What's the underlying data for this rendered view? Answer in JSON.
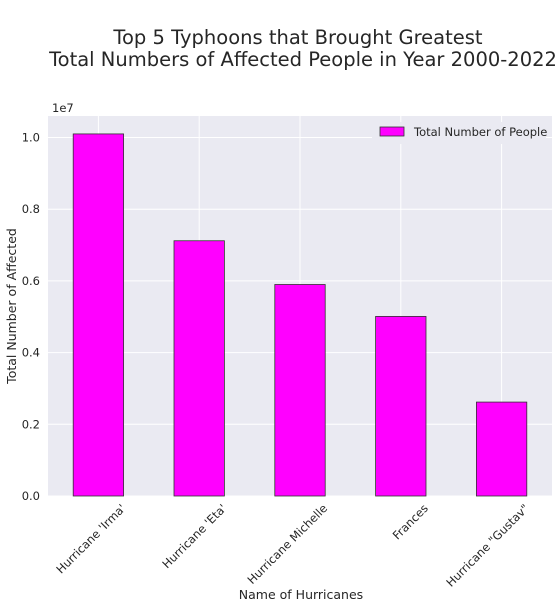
{
  "chart_data": {
    "type": "bar",
    "title_lines": [
      "Top 5 Typhoons that Brought Greatest",
      "Total Numbers of Affected People in Year 2000-2022"
    ],
    "xlabel": "Name of Hurricanes",
    "ylabel": "Total Number of Affected",
    "y_offset_label": "1e7",
    "categories": [
      "Hurricane 'Irma'",
      "Hurricane 'Eta'",
      "Hurricane Michelle",
      "Frances",
      "Hurricane \"Gustav\""
    ],
    "series": [
      {
        "name": "Total Number of People",
        "values": [
          10100000,
          7120000,
          5900000,
          5010000,
          2620000
        ]
      }
    ],
    "yticks": [
      0.0,
      0.2,
      0.4,
      0.6,
      0.8,
      1.0
    ],
    "ytick_labels": [
      "0.0",
      "0.2",
      "0.4",
      "0.6",
      "0.8",
      "1.0"
    ],
    "ylim": [
      0,
      10600000
    ],
    "grid": true,
    "legend_position": "top-right",
    "colors": {
      "bar": "#ff00ff",
      "bar_edge": "#333333",
      "plot_bg": "#eaeaf2",
      "grid": "#ffffff"
    }
  }
}
